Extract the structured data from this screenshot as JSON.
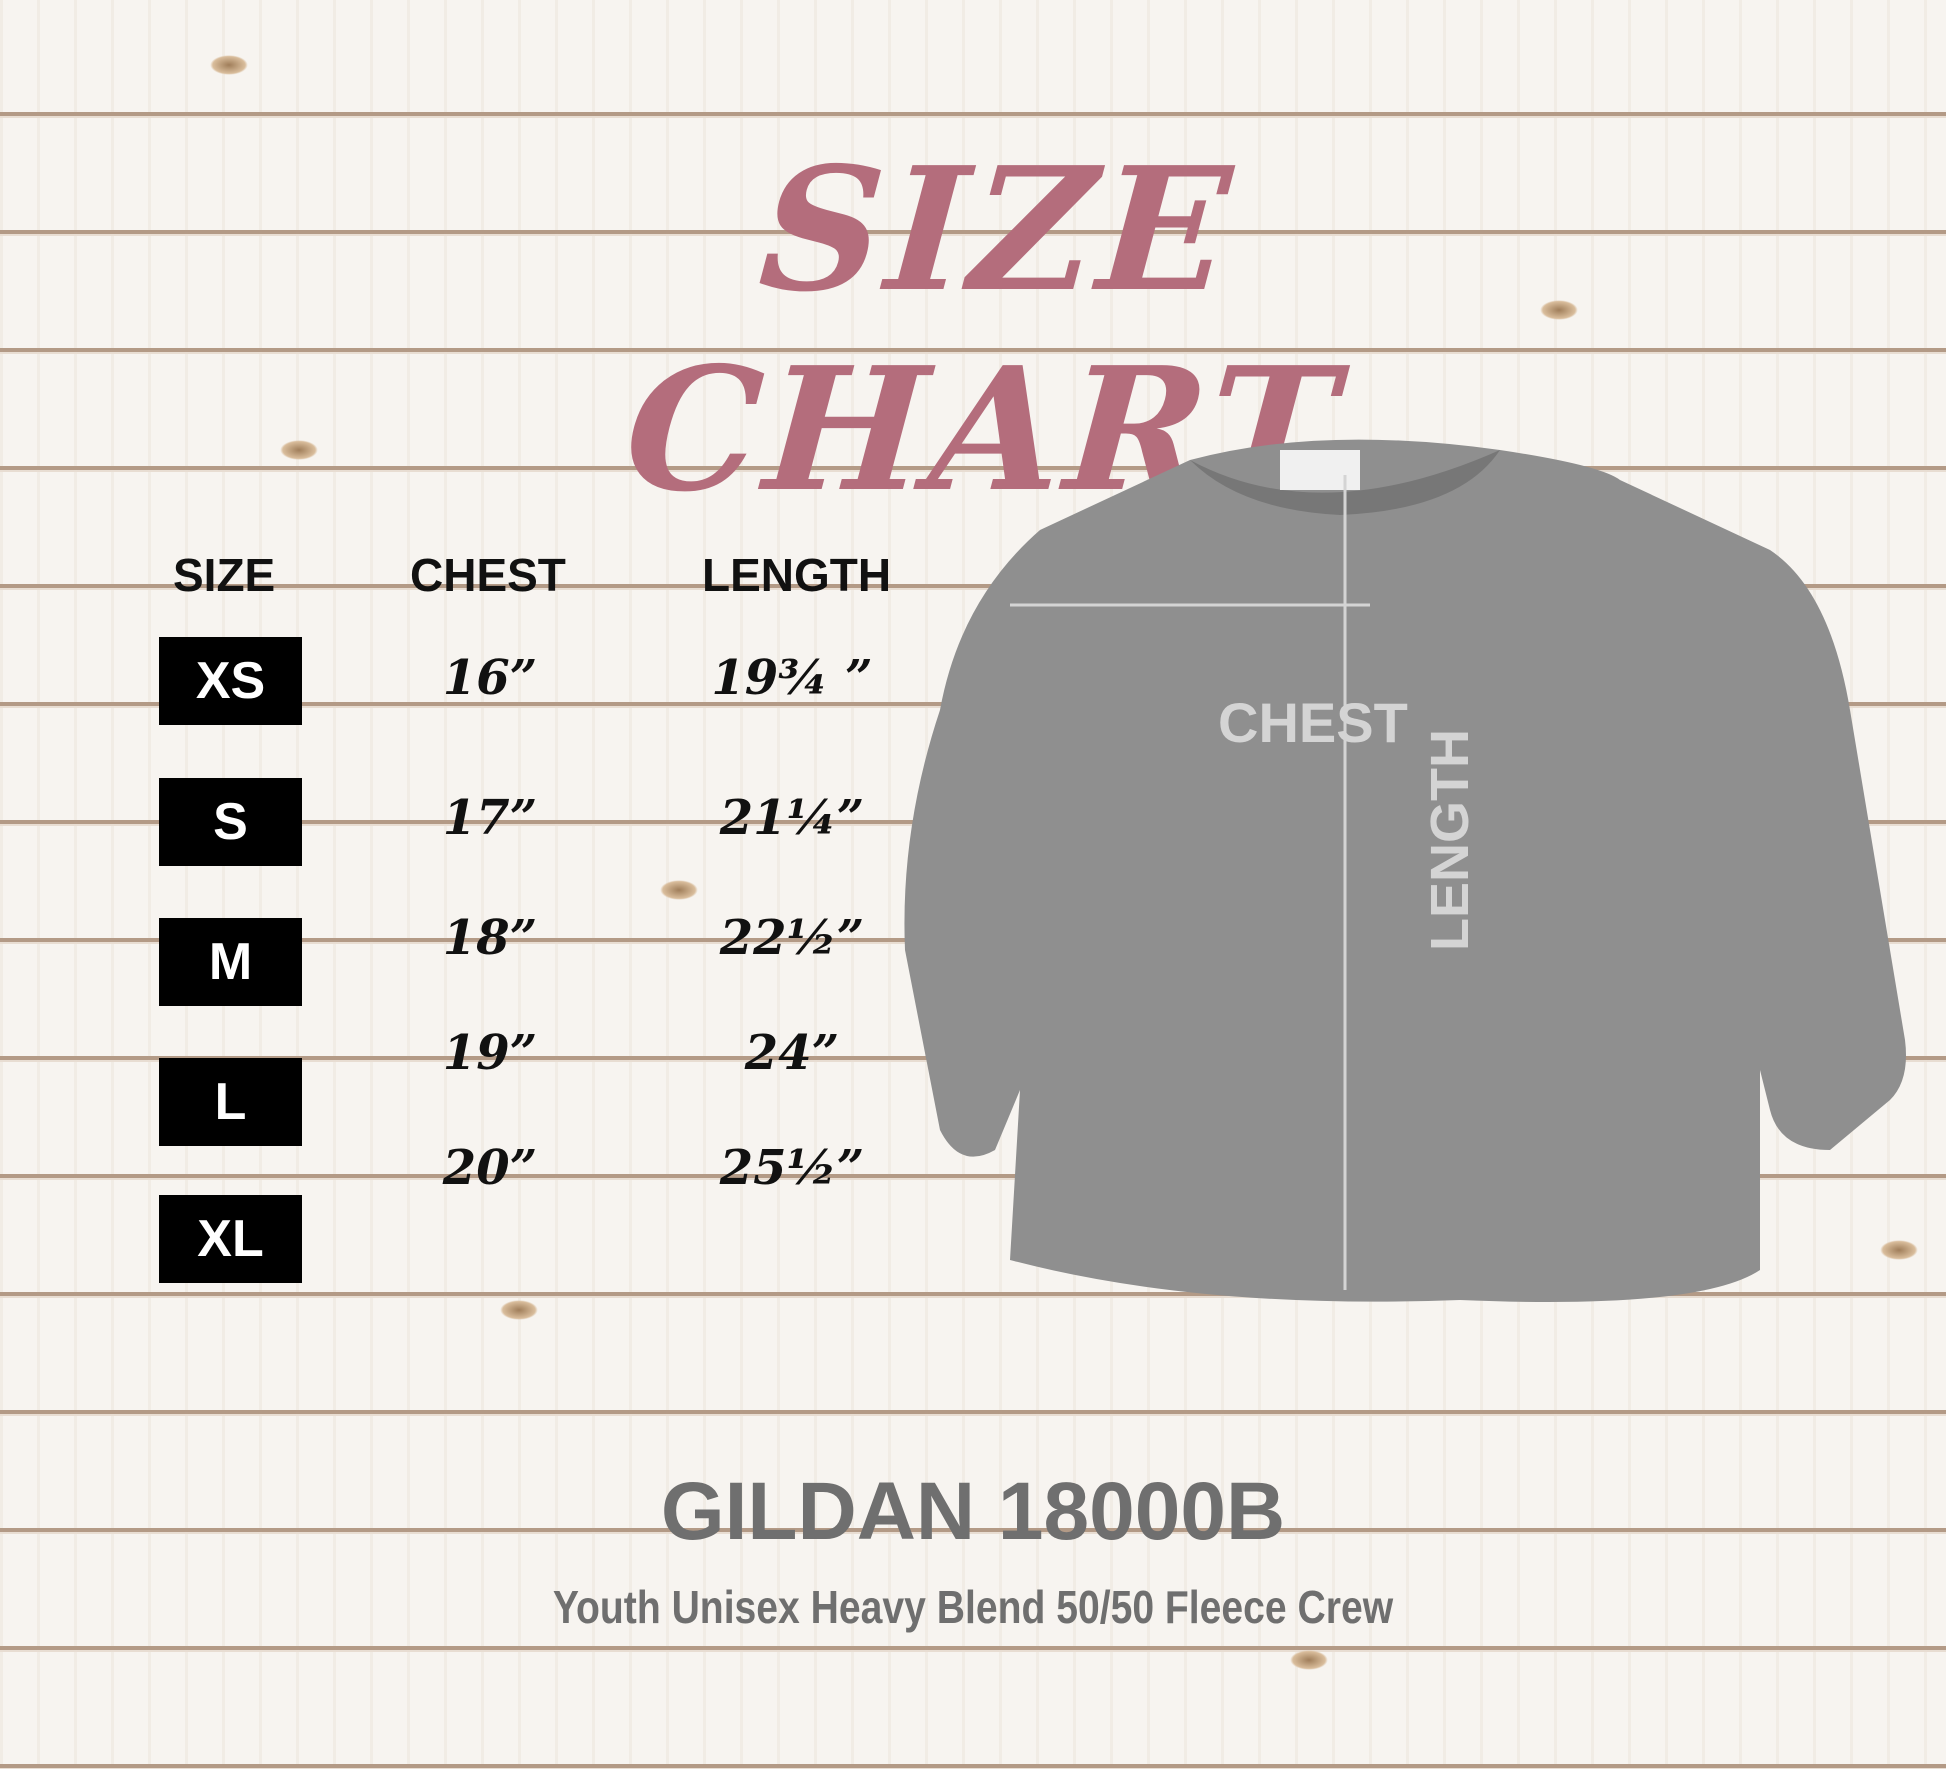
{
  "title": "SIZE CHART",
  "table": {
    "headers": [
      "SIZE",
      "CHEST",
      "LENGTH"
    ],
    "rows": [
      {
        "size": "XS",
        "chest": "16”",
        "length": "19¾ ”"
      },
      {
        "size": "S",
        "chest": "17”",
        "length": "21¼”"
      },
      {
        "size": "M",
        "chest": "18”",
        "length": "22½”"
      },
      {
        "size": "L",
        "chest": "19”",
        "length": "24”"
      },
      {
        "size": "XL",
        "chest": "20”",
        "length": "25½”"
      }
    ]
  },
  "diagram": {
    "chest_label": "CHEST",
    "length_label": "LENGTH"
  },
  "product": {
    "model": "GILDAN 18000B",
    "description": "Youth Unisex Heavy Blend 50/50 Fleece Crew"
  },
  "colors": {
    "title": "#b46d7c",
    "sweatshirt": "#8f8f8f",
    "brand_text": "#6f6f6f"
  }
}
